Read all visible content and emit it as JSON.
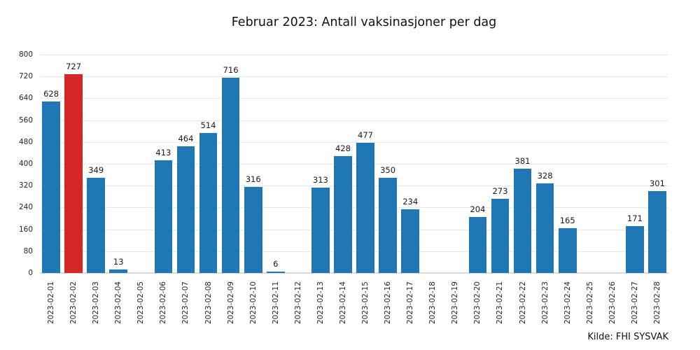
{
  "chart_data": {
    "type": "bar",
    "title": "Februar 2023: Antall vaksinasjoner per dag",
    "source": "Kilde: FHI SYSVAK",
    "categories": [
      "2023-02-01",
      "2023-02-02",
      "2023-02-03",
      "2023-02-04",
      "2023-02-05",
      "2023-02-06",
      "2023-02-07",
      "2023-02-08",
      "2023-02-09",
      "2023-02-10",
      "2023-02-11",
      "2023-02-12",
      "2023-02-13",
      "2023-02-14",
      "2023-02-15",
      "2023-02-16",
      "2023-02-17",
      "2023-02-18",
      "2023-02-19",
      "2023-02-20",
      "2023-02-21",
      "2023-02-22",
      "2023-02-23",
      "2023-02-24",
      "2023-02-25",
      "2023-02-26",
      "2023-02-27",
      "2023-02-28"
    ],
    "values": [
      628,
      727,
      349,
      13,
      null,
      413,
      464,
      514,
      716,
      316,
      6,
      null,
      313,
      428,
      477,
      350,
      234,
      null,
      null,
      204,
      273,
      381,
      328,
      165,
      null,
      null,
      171,
      301
    ],
    "highlight_index": 1,
    "highlight_category": "2023-02-02",
    "bar_color": "#1f77b4",
    "highlight_color": "#d62728",
    "xlabel": "",
    "ylabel": "",
    "ylim": [
      0,
      800
    ],
    "yticks": [
      0,
      80,
      160,
      240,
      320,
      400,
      480,
      560,
      640,
      720,
      800
    ],
    "grid": "horizontal",
    "legend": "none",
    "annotations": "value labels above bars"
  }
}
